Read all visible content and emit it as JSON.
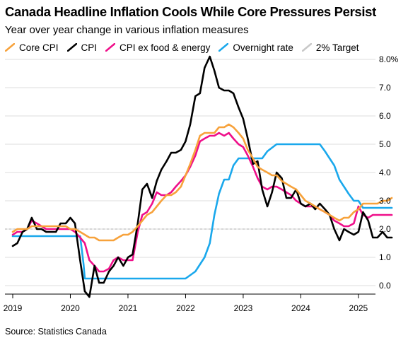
{
  "title": "Canada Headline Inflation Cools While Core Pressures Persist",
  "subtitle": "Year over year change in various inflation measures",
  "source": "Source: Statistics Canada",
  "colors": {
    "core_cpi": "#f7a23b",
    "cpi": "#000000",
    "cpi_ex_food_energy": "#ef0f8a",
    "overnight_rate": "#1aa8ec",
    "target": "#c8c8c8",
    "grid": "#dcdcdc"
  },
  "legend": [
    {
      "label": "Core CPI",
      "color": "#f7a23b",
      "style": "solid"
    },
    {
      "label": "CPI",
      "color": "#000000",
      "style": "solid"
    },
    {
      "label": "CPI ex food & energy",
      "color": "#ef0f8a",
      "style": "solid"
    },
    {
      "label": "Overnight rate",
      "color": "#1aa8ec",
      "style": "solid"
    },
    {
      "label": "2% Target",
      "color": "#c8c8c8",
      "style": "dashed"
    }
  ],
  "chart_data": {
    "type": "line",
    "title": "Canada Headline Inflation Cools While Core Pressures Persist",
    "subtitle": "Year over year change in various inflation measures",
    "xlim": [
      2019.0,
      2025.75
    ],
    "ylim": [
      -0.3,
      8.0
    ],
    "x_ticks": [
      2019,
      2020,
      2021,
      2022,
      2023,
      2024,
      2025
    ],
    "x_tick_labels": [
      "2019",
      "2020",
      "2021",
      "2022",
      "2023",
      "2024",
      "2025"
    ],
    "y_ticks": [
      0,
      1,
      2,
      3,
      4,
      5,
      6,
      7,
      8
    ],
    "y_tick_labels": [
      "0.0",
      "1.0",
      "2.0",
      "3.0",
      "4.0",
      "5.0",
      "6.0",
      "7.0",
      "8.0%"
    ],
    "y_axis_side": "right",
    "grid": "horizontal",
    "legend_position": "top",
    "target_line": {
      "name": "2% Target",
      "value": 2.0
    },
    "series": [
      {
        "name": "Core CPI",
        "color": "#f7a23b",
        "points": [
          [
            2019.0,
            1.9
          ],
          [
            2019.08,
            2.0
          ],
          [
            2019.17,
            2.0
          ],
          [
            2019.25,
            2.0
          ],
          [
            2019.33,
            2.1
          ],
          [
            2019.42,
            2.1
          ],
          [
            2019.5,
            2.1
          ],
          [
            2019.58,
            2.1
          ],
          [
            2019.67,
            2.1
          ],
          [
            2019.75,
            2.1
          ],
          [
            2019.83,
            2.1
          ],
          [
            2019.92,
            2.1
          ],
          [
            2020.0,
            2.0
          ],
          [
            2020.08,
            2.0
          ],
          [
            2020.17,
            1.9
          ],
          [
            2020.25,
            1.8
          ],
          [
            2020.33,
            1.7
          ],
          [
            2020.42,
            1.7
          ],
          [
            2020.5,
            1.6
          ],
          [
            2020.58,
            1.6
          ],
          [
            2020.67,
            1.6
          ],
          [
            2020.75,
            1.6
          ],
          [
            2020.83,
            1.7
          ],
          [
            2020.92,
            1.8
          ],
          [
            2021.0,
            1.8
          ],
          [
            2021.08,
            1.9
          ],
          [
            2021.17,
            2.1
          ],
          [
            2021.25,
            2.3
          ],
          [
            2021.33,
            2.5
          ],
          [
            2021.42,
            2.6
          ],
          [
            2021.5,
            2.8
          ],
          [
            2021.58,
            3.0
          ],
          [
            2021.67,
            3.2
          ],
          [
            2021.75,
            3.2
          ],
          [
            2021.83,
            3.3
          ],
          [
            2021.92,
            3.5
          ],
          [
            2022.0,
            3.9
          ],
          [
            2022.08,
            4.3
          ],
          [
            2022.17,
            4.8
          ],
          [
            2022.25,
            5.3
          ],
          [
            2022.33,
            5.4
          ],
          [
            2022.42,
            5.4
          ],
          [
            2022.5,
            5.4
          ],
          [
            2022.58,
            5.6
          ],
          [
            2022.67,
            5.6
          ],
          [
            2022.75,
            5.7
          ],
          [
            2022.83,
            5.6
          ],
          [
            2022.92,
            5.4
          ],
          [
            2023.0,
            5.2
          ],
          [
            2023.08,
            4.8
          ],
          [
            2023.17,
            4.5
          ],
          [
            2023.25,
            4.2
          ],
          [
            2023.33,
            4.1
          ],
          [
            2023.42,
            4.0
          ],
          [
            2023.5,
            3.9
          ],
          [
            2023.58,
            3.9
          ],
          [
            2023.67,
            3.7
          ],
          [
            2023.75,
            3.6
          ],
          [
            2023.83,
            3.5
          ],
          [
            2023.92,
            3.4
          ],
          [
            2024.0,
            3.2
          ],
          [
            2024.08,
            3.0
          ],
          [
            2024.17,
            2.9
          ],
          [
            2024.25,
            2.8
          ],
          [
            2024.33,
            2.7
          ],
          [
            2024.42,
            2.6
          ],
          [
            2024.5,
            2.5
          ],
          [
            2024.58,
            2.4
          ],
          [
            2024.67,
            2.3
          ],
          [
            2024.75,
            2.4
          ],
          [
            2024.83,
            2.4
          ],
          [
            2024.92,
            2.6
          ],
          [
            2025.0,
            2.7
          ],
          [
            2025.08,
            2.9
          ],
          [
            2025.17,
            2.9
          ],
          [
            2025.25,
            2.9
          ],
          [
            2025.33,
            2.9
          ],
          [
            2025.42,
            3.0
          ],
          [
            2025.5,
            3.0
          ],
          [
            2025.58,
            3.1
          ]
        ]
      },
      {
        "name": "CPI",
        "color": "#000000",
        "points": [
          [
            2019.0,
            1.4
          ],
          [
            2019.08,
            1.5
          ],
          [
            2019.17,
            1.9
          ],
          [
            2019.25,
            2.0
          ],
          [
            2019.33,
            2.4
          ],
          [
            2019.42,
            2.0
          ],
          [
            2019.5,
            2.0
          ],
          [
            2019.58,
            1.9
          ],
          [
            2019.67,
            1.9
          ],
          [
            2019.75,
            1.9
          ],
          [
            2019.83,
            2.2
          ],
          [
            2019.92,
            2.2
          ],
          [
            2020.0,
            2.4
          ],
          [
            2020.08,
            2.2
          ],
          [
            2020.17,
            0.9
          ],
          [
            2020.25,
            -0.2
          ],
          [
            2020.33,
            -0.4
          ],
          [
            2020.42,
            0.7
          ],
          [
            2020.5,
            0.1
          ],
          [
            2020.58,
            0.1
          ],
          [
            2020.67,
            0.5
          ],
          [
            2020.75,
            0.7
          ],
          [
            2020.83,
            1.0
          ],
          [
            2020.92,
            0.7
          ],
          [
            2021.0,
            1.0
          ],
          [
            2021.08,
            1.1
          ],
          [
            2021.17,
            2.2
          ],
          [
            2021.25,
            3.4
          ],
          [
            2021.33,
            3.6
          ],
          [
            2021.42,
            3.1
          ],
          [
            2021.5,
            3.7
          ],
          [
            2021.58,
            4.1
          ],
          [
            2021.67,
            4.4
          ],
          [
            2021.75,
            4.7
          ],
          [
            2021.83,
            4.7
          ],
          [
            2021.92,
            4.8
          ],
          [
            2022.0,
            5.1
          ],
          [
            2022.08,
            5.7
          ],
          [
            2022.17,
            6.7
          ],
          [
            2022.25,
            6.8
          ],
          [
            2022.33,
            7.7
          ],
          [
            2022.42,
            8.1
          ],
          [
            2022.5,
            7.6
          ],
          [
            2022.58,
            7.0
          ],
          [
            2022.67,
            6.9
          ],
          [
            2022.75,
            6.9
          ],
          [
            2022.83,
            6.8
          ],
          [
            2022.92,
            6.3
          ],
          [
            2023.0,
            5.9
          ],
          [
            2023.08,
            5.2
          ],
          [
            2023.17,
            4.3
          ],
          [
            2023.25,
            4.4
          ],
          [
            2023.33,
            3.4
          ],
          [
            2023.42,
            2.8
          ],
          [
            2023.5,
            3.3
          ],
          [
            2023.58,
            4.0
          ],
          [
            2023.67,
            3.8
          ],
          [
            2023.75,
            3.1
          ],
          [
            2023.83,
            3.1
          ],
          [
            2023.92,
            3.4
          ],
          [
            2024.0,
            2.9
          ],
          [
            2024.08,
            2.8
          ],
          [
            2024.17,
            2.9
          ],
          [
            2024.25,
            2.7
          ],
          [
            2024.33,
            2.9
          ],
          [
            2024.42,
            2.7
          ],
          [
            2024.5,
            2.5
          ],
          [
            2024.58,
            2.0
          ],
          [
            2024.67,
            1.6
          ],
          [
            2024.75,
            2.0
          ],
          [
            2024.83,
            1.9
          ],
          [
            2024.92,
            1.8
          ],
          [
            2025.0,
            1.9
          ],
          [
            2025.08,
            2.6
          ],
          [
            2025.17,
            2.3
          ],
          [
            2025.25,
            1.7
          ],
          [
            2025.33,
            1.7
          ],
          [
            2025.42,
            1.9
          ],
          [
            2025.5,
            1.7
          ],
          [
            2025.58,
            1.7
          ]
        ]
      },
      {
        "name": "CPI ex food & energy",
        "color": "#ef0f8a",
        "points": [
          [
            2019.0,
            1.8
          ],
          [
            2019.08,
            1.9
          ],
          [
            2019.17,
            1.9
          ],
          [
            2019.25,
            2.0
          ],
          [
            2019.33,
            2.3
          ],
          [
            2019.42,
            2.2
          ],
          [
            2019.5,
            2.1
          ],
          [
            2019.58,
            2.0
          ],
          [
            2019.67,
            2.0
          ],
          [
            2019.75,
            2.0
          ],
          [
            2019.83,
            2.0
          ],
          [
            2019.92,
            2.0
          ],
          [
            2020.0,
            2.0
          ],
          [
            2020.08,
            1.9
          ],
          [
            2020.17,
            1.7
          ],
          [
            2020.25,
            1.5
          ],
          [
            2020.33,
            0.9
          ],
          [
            2020.42,
            0.7
          ],
          [
            2020.5,
            0.5
          ],
          [
            2020.58,
            0.5
          ],
          [
            2020.67,
            0.6
          ],
          [
            2020.75,
            0.9
          ],
          [
            2020.83,
            1.0
          ],
          [
            2020.92,
            0.9
          ],
          [
            2021.0,
            0.9
          ],
          [
            2021.08,
            0.9
          ],
          [
            2021.17,
            1.9
          ],
          [
            2021.25,
            2.5
          ],
          [
            2021.33,
            2.6
          ],
          [
            2021.42,
            2.9
          ],
          [
            2021.5,
            3.3
          ],
          [
            2021.58,
            3.2
          ],
          [
            2021.67,
            3.2
          ],
          [
            2021.75,
            3.3
          ],
          [
            2021.83,
            3.5
          ],
          [
            2021.92,
            3.7
          ],
          [
            2022.0,
            3.9
          ],
          [
            2022.08,
            4.2
          ],
          [
            2022.17,
            4.6
          ],
          [
            2022.25,
            5.1
          ],
          [
            2022.33,
            5.2
          ],
          [
            2022.42,
            5.3
          ],
          [
            2022.5,
            5.3
          ],
          [
            2022.58,
            5.4
          ],
          [
            2022.67,
            5.3
          ],
          [
            2022.75,
            5.4
          ],
          [
            2022.83,
            5.2
          ],
          [
            2022.92,
            5.0
          ],
          [
            2023.0,
            4.9
          ],
          [
            2023.08,
            4.6
          ],
          [
            2023.17,
            4.2
          ],
          [
            2023.25,
            3.8
          ],
          [
            2023.33,
            3.5
          ],
          [
            2023.42,
            3.4
          ],
          [
            2023.5,
            3.5
          ],
          [
            2023.58,
            3.5
          ],
          [
            2023.67,
            3.4
          ],
          [
            2023.75,
            3.3
          ],
          [
            2023.83,
            3.2
          ],
          [
            2023.92,
            3.0
          ],
          [
            2024.0,
            2.9
          ],
          [
            2024.08,
            2.8
          ],
          [
            2024.17,
            2.8
          ],
          [
            2024.25,
            2.8
          ],
          [
            2024.33,
            2.7
          ],
          [
            2024.42,
            2.6
          ],
          [
            2024.5,
            2.5
          ],
          [
            2024.58,
            2.3
          ],
          [
            2024.67,
            2.2
          ],
          [
            2024.75,
            2.1
          ],
          [
            2024.83,
            2.1
          ],
          [
            2024.92,
            2.2
          ],
          [
            2025.0,
            2.8
          ],
          [
            2025.08,
            2.5
          ],
          [
            2025.17,
            2.4
          ],
          [
            2025.25,
            2.5
          ],
          [
            2025.33,
            2.5
          ],
          [
            2025.42,
            2.5
          ],
          [
            2025.5,
            2.5
          ],
          [
            2025.58,
            2.5
          ]
        ]
      },
      {
        "name": "Overnight rate",
        "color": "#1aa8ec",
        "points": [
          [
            2019.0,
            1.75
          ],
          [
            2019.5,
            1.75
          ],
          [
            2020.0,
            1.75
          ],
          [
            2020.17,
            1.75
          ],
          [
            2020.2,
            1.25
          ],
          [
            2020.23,
            0.75
          ],
          [
            2020.25,
            0.25
          ],
          [
            2020.58,
            0.25
          ],
          [
            2021.0,
            0.25
          ],
          [
            2021.5,
            0.25
          ],
          [
            2022.0,
            0.25
          ],
          [
            2022.17,
            0.5
          ],
          [
            2022.33,
            1.0
          ],
          [
            2022.42,
            1.5
          ],
          [
            2022.5,
            2.5
          ],
          [
            2022.58,
            3.25
          ],
          [
            2022.67,
            3.75
          ],
          [
            2022.75,
            3.75
          ],
          [
            2022.83,
            4.25
          ],
          [
            2022.92,
            4.5
          ],
          [
            2023.0,
            4.5
          ],
          [
            2023.33,
            4.5
          ],
          [
            2023.42,
            4.75
          ],
          [
            2023.58,
            5.0
          ],
          [
            2023.83,
            5.0
          ],
          [
            2024.0,
            5.0
          ],
          [
            2024.33,
            5.0
          ],
          [
            2024.42,
            4.75
          ],
          [
            2024.5,
            4.5
          ],
          [
            2024.58,
            4.25
          ],
          [
            2024.67,
            3.75
          ],
          [
            2024.83,
            3.25
          ],
          [
            2024.92,
            3.0
          ],
          [
            2025.0,
            3.0
          ],
          [
            2025.08,
            2.75
          ],
          [
            2025.17,
            2.75
          ],
          [
            2025.33,
            2.75
          ],
          [
            2025.5,
            2.75
          ],
          [
            2025.58,
            2.75
          ]
        ]
      }
    ]
  }
}
